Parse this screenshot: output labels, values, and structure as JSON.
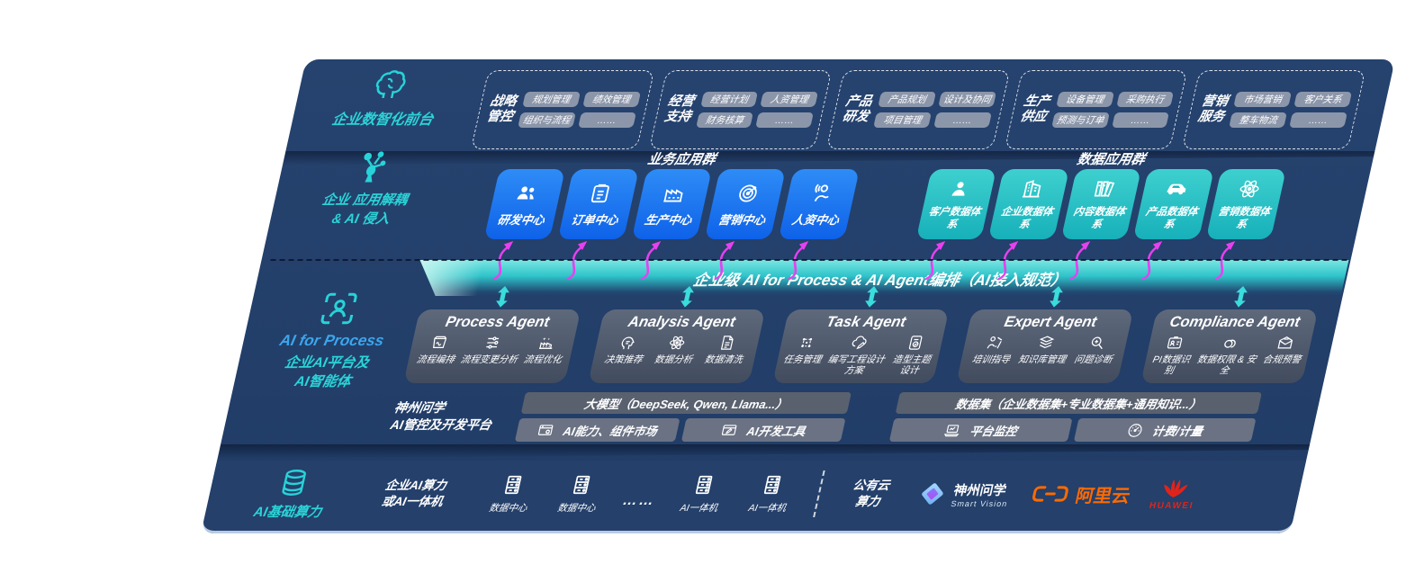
{
  "colors": {
    "navy": "#24406B",
    "teal_accent": "#2BD4D8",
    "business_blue": "#1677F0",
    "data_teal": "#2CC6C8",
    "orchestration_teal": "#35CFD2",
    "arrow_magenta": "#E840F0",
    "panel_gray": "#5A6375",
    "chip_gray": "#8C96AA",
    "process_blue": "#3BA6EC",
    "alibaba_orange": "#FF6A00",
    "huawei_red": "#E2231A"
  },
  "front_layer": {
    "label": "企业数智化前台",
    "icon": "brain",
    "groups": [
      {
        "name_l1": "战略",
        "name_l2": "管控",
        "chips": [
          "规划管理",
          "绩效管理",
          "组织与流程",
          "……"
        ]
      },
      {
        "name_l1": "经营",
        "name_l2": "支持",
        "chips": [
          "经营计划",
          "人资管理",
          "财务核算",
          "……"
        ]
      },
      {
        "name_l1": "产品",
        "name_l2": "研发",
        "chips": [
          "产品规划",
          "设计及协同",
          "项目管理",
          "……"
        ]
      },
      {
        "name_l1": "生产",
        "name_l2": "供应",
        "chips": [
          "设备管理",
          "采购执行",
          "预测与订单",
          "……"
        ]
      },
      {
        "name_l1": "营销",
        "name_l2": "服务",
        "chips": [
          "市场营销",
          "客户关系",
          "整车物流",
          "……"
        ]
      }
    ]
  },
  "app_layer": {
    "label_l1": "企业 应用解耦",
    "label_l2": "& AI 侵入",
    "icon": "molecule",
    "business_group": {
      "title": "业务应用群",
      "boxes": [
        {
          "label": "研发中心",
          "icon": "people"
        },
        {
          "label": "订单中心",
          "icon": "clipboard"
        },
        {
          "label": "生产中心",
          "icon": "factory"
        },
        {
          "label": "营销中心",
          "icon": "target"
        },
        {
          "label": "人资中心",
          "icon": "person-wave"
        }
      ]
    },
    "data_group": {
      "title": "数据应用群",
      "boxes": [
        {
          "label": "客户数据体系",
          "icon": "person"
        },
        {
          "label": "企业数据体系",
          "icon": "building"
        },
        {
          "label": "内容数据体系",
          "icon": "books"
        },
        {
          "label": "产品数据体系",
          "icon": "car"
        },
        {
          "label": "营销数据体系",
          "icon": "atom"
        }
      ]
    }
  },
  "orchestration_bar": {
    "label": "企业级 AI for Process & AI Agent编排（AI接入规范）"
  },
  "agent_layer": {
    "label_primary": "AI for Process",
    "label_l2": "企业AI平台及",
    "label_l3": "AI智能体",
    "icon": "scan-person",
    "agents": [
      {
        "title": "Process Agent",
        "items": [
          {
            "label": "流程编排",
            "icon": "flow-monitor"
          },
          {
            "label": "流程变更分析",
            "icon": "sliders"
          },
          {
            "label": "流程优化",
            "icon": "factory-opt"
          }
        ]
      },
      {
        "title": "Analysis Agent",
        "items": [
          {
            "label": "决策推荐",
            "icon": "head-chat"
          },
          {
            "label": "数据分析",
            "icon": "atom"
          },
          {
            "label": "数据清洗",
            "icon": "doc-lines"
          }
        ]
      },
      {
        "title": "Task Agent",
        "items": [
          {
            "label": "任务管理",
            "icon": "grid-nodes"
          },
          {
            "label": "编写工程设计方案",
            "icon": "cloud-pen"
          },
          {
            "label": "造型主题设计",
            "icon": "tablet-check"
          }
        ]
      },
      {
        "title": "Expert Agent",
        "items": [
          {
            "label": "培训指导",
            "icon": "teacher"
          },
          {
            "label": "知识库管理",
            "icon": "layers"
          },
          {
            "label": "问题诊断",
            "icon": "diagnose-search"
          }
        ]
      },
      {
        "title": "Compliance Agent",
        "items": [
          {
            "label": "PI数据识别",
            "icon": "id-card"
          },
          {
            "label": "数据权限 & 安全",
            "icon": "link-rings"
          },
          {
            "label": "合规预警",
            "icon": "mail-alert"
          }
        ]
      }
    ]
  },
  "platform_layer": {
    "label_l1": "神州问学",
    "label_l2": "AI管控及开发平台",
    "model_bar": "大模型（DeepSeek, Qwen, Llama...）",
    "dataset_bar": "数据集（企业数据集+专业数据集+通用知识...）",
    "tools": [
      {
        "label": "AI能力、组件市场",
        "icon": "window-gear"
      },
      {
        "label": "AI开发工具",
        "icon": "window-pen"
      }
    ],
    "ops": [
      {
        "label": "平台监控",
        "icon": "laptop-chart"
      },
      {
        "label": "计费/计量",
        "icon": "gauge"
      }
    ]
  },
  "infra_layer": {
    "label": "AI基础算力",
    "icon": "database",
    "compute_l1": "企业AI算力",
    "compute_l2": "或AI一体机",
    "nodes": [
      {
        "label": "数据中心",
        "icon": "server"
      },
      {
        "label": "数据中心",
        "icon": "server"
      },
      {
        "label": "……",
        "icon": "dots"
      },
      {
        "label": "AI一体机",
        "icon": "server"
      },
      {
        "label": "AI一体机",
        "icon": "server"
      }
    ],
    "cloud_l1": "公有云",
    "cloud_l2": "算力",
    "vendors": [
      {
        "name": "神州问学",
        "sub": "Smart Vision",
        "icon": "diamond"
      },
      {
        "name": "阿里云",
        "sub": "",
        "icon": "alibaba"
      },
      {
        "name": "HUAWEI",
        "sub": "",
        "icon": "huawei"
      }
    ]
  }
}
